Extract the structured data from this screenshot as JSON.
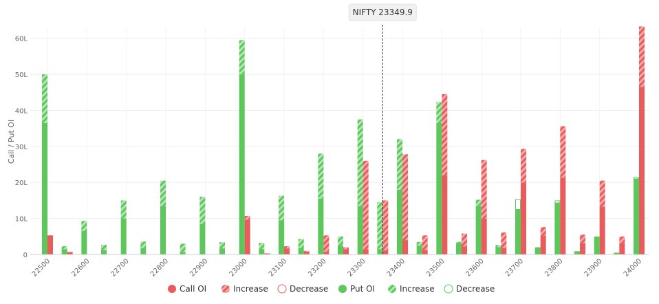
{
  "chart_data": {
    "type": "bar",
    "ylabel": "Call / Put OI",
    "y_tick_labels": [
      "0",
      "10L",
      "20L",
      "30L",
      "40L",
      "50L",
      "60L"
    ],
    "ylim": [
      0,
      63
    ],
    "spot": {
      "label": "NIFTY 23349.9",
      "value": 23349.9
    },
    "x_tick_labels": [
      "22500",
      "22600",
      "22700",
      "22800",
      "22900",
      "23000",
      "23100",
      "23200",
      "23300",
      "23400",
      "23500",
      "23600",
      "23700",
      "23800",
      "23900",
      "24000"
    ],
    "strikes": [
      22500,
      22550,
      22600,
      22650,
      22700,
      22750,
      22800,
      22850,
      22900,
      22950,
      23000,
      23050,
      23100,
      23150,
      23200,
      23250,
      23300,
      23350,
      23400,
      23450,
      23500,
      23550,
      23600,
      23650,
      23700,
      23750,
      23800,
      23850,
      23900,
      23950,
      24000
    ],
    "call_oi": [
      5.3,
      0.7,
      0,
      0,
      0,
      0,
      0,
      0,
      0,
      0,
      9.7,
      0.3,
      1.7,
      0.8,
      0.8,
      1.5,
      1.5,
      1.2,
      4.0,
      1.3,
      22.0,
      2.2,
      10.0,
      1.8,
      20.0,
      5.3,
      21.3,
      3.2,
      13.3,
      3.2,
      46.5
    ],
    "call_increase": [
      0,
      0,
      0,
      0,
      0,
      0,
      0,
      0,
      0,
      0,
      1.0,
      0,
      0.6,
      0.2,
      4.5,
      0.5,
      24.5,
      13.8,
      23.8,
      4.0,
      22.5,
      3.6,
      16.2,
      4.3,
      9.3,
      2.3,
      14.3,
      2.3,
      7.2,
      1.8,
      16.8
    ],
    "call_decrease": [
      0,
      0,
      0,
      0,
      0,
      0,
      0,
      0,
      0,
      0,
      0,
      0,
      0,
      0,
      0,
      0,
      0,
      0,
      0,
      0,
      0,
      0,
      0,
      0,
      0,
      0,
      0,
      0,
      0,
      0,
      0
    ],
    "put_oi": [
      36.5,
      1.5,
      6.5,
      1.2,
      10.0,
      1.8,
      13.5,
      0.7,
      8.5,
      1.7,
      50.0,
      1.5,
      9.5,
      1.8,
      15.5,
      2.5,
      13.5,
      1.5,
      18.0,
      2.5,
      36.5,
      3.2,
      13.5,
      2.0,
      12.5,
      2.0,
      14.3,
      0.9,
      5.0,
      0.5,
      21.0
    ],
    "put_increase": [
      13.5,
      0.8,
      2.8,
      1.5,
      5.0,
      1.8,
      7.0,
      2.3,
      7.5,
      1.7,
      9.5,
      1.7,
      6.8,
      2.5,
      12.5,
      2.5,
      24.0,
      13.0,
      14.0,
      1.0,
      5.8,
      0.3,
      1.7,
      0.6,
      0,
      0,
      0,
      0,
      0,
      0,
      0
    ],
    "put_decrease": [
      0,
      0,
      0,
      0,
      0,
      0,
      0,
      0,
      0,
      0,
      0,
      0,
      0,
      0,
      0,
      0,
      0,
      0,
      0,
      0,
      0,
      0,
      0,
      0,
      2.7,
      0,
      0.6,
      0,
      0,
      0,
      0.4
    ],
    "legend": [
      {
        "label": "Call OI",
        "color": "#e85c5c",
        "style": "solid"
      },
      {
        "label": "Increase",
        "color": "#f29d9d",
        "style": "hatch"
      },
      {
        "label": "Decrease",
        "color": "#e85c5c",
        "style": "outline"
      },
      {
        "label": "Put OI",
        "color": "#5cc85c",
        "style": "solid"
      },
      {
        "label": "Increase",
        "color": "#a9e0a9",
        "style": "hatch"
      },
      {
        "label": "Decrease",
        "color": "#5cc85c",
        "style": "outline"
      }
    ],
    "colors": {
      "call": "#e85c5c",
      "put": "#5cc85c",
      "grid": "#eeeeee"
    }
  }
}
